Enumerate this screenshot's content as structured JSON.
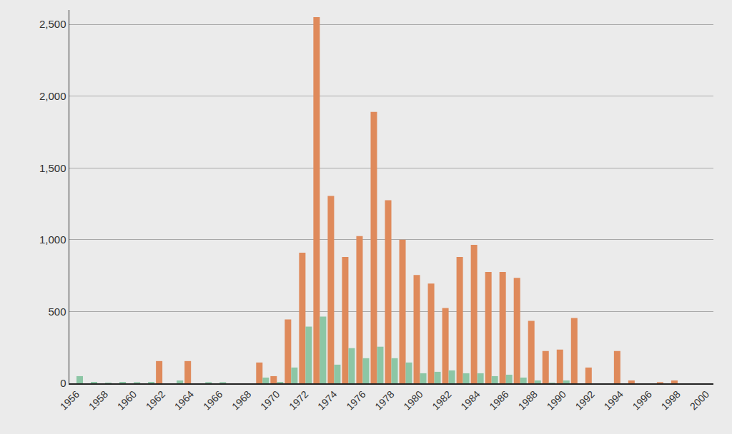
{
  "chart_data": {
    "type": "bar",
    "x": [
      1956,
      1957,
      1958,
      1959,
      1960,
      1961,
      1962,
      1963,
      1964,
      1965,
      1966,
      1967,
      1968,
      1969,
      1970,
      1971,
      1972,
      1973,
      1974,
      1975,
      1976,
      1977,
      1978,
      1979,
      1980,
      1981,
      1982,
      1983,
      1984,
      1985,
      1986,
      1987,
      1988,
      1989,
      1990,
      1991,
      1992,
      1993,
      1994,
      1995,
      1996,
      1997,
      1998,
      1999,
      2000
    ],
    "series": [
      {
        "color": "#df8a5b",
        "values": [
          0,
          0,
          0,
          0,
          0,
          0,
          155,
          0,
          155,
          0,
          0,
          0,
          0,
          145,
          50,
          445,
          910,
          2550,
          1305,
          880,
          1025,
          1890,
          1275,
          1000,
          755,
          695,
          525,
          880,
          965,
          775,
          775,
          735,
          435,
          225,
          235,
          455,
          110,
          0,
          225,
          20,
          0,
          8,
          20,
          0,
          0
        ]
      },
      {
        "color": "#8cc6a5",
        "values": [
          50,
          10,
          5,
          10,
          8,
          10,
          0,
          20,
          0,
          8,
          8,
          0,
          0,
          40,
          10,
          110,
          395,
          465,
          130,
          245,
          175,
          255,
          175,
          145,
          70,
          80,
          90,
          70,
          70,
          50,
          60,
          40,
          20,
          5,
          20,
          0,
          0,
          0,
          0,
          0,
          0,
          0,
          0,
          0,
          0
        ]
      }
    ],
    "xlim": [
      1955.5,
      2000.5
    ],
    "xticks": [
      1956,
      1958,
      1960,
      1962,
      1964,
      1966,
      1968,
      1970,
      1972,
      1974,
      1976,
      1978,
      1980,
      1982,
      1984,
      1986,
      1988,
      1990,
      1992,
      1994,
      1996,
      1998,
      2000
    ],
    "ylim": [
      0,
      2600
    ],
    "yticks": [
      0,
      500,
      {
        "value": 1000,
        "label": "1,000"
      },
      {
        "value": 1500,
        "label": "1,500"
      },
      {
        "value": 2000,
        "label": "2,000"
      },
      {
        "value": 2500,
        "label": "2,500"
      }
    ],
    "grid": true
  }
}
